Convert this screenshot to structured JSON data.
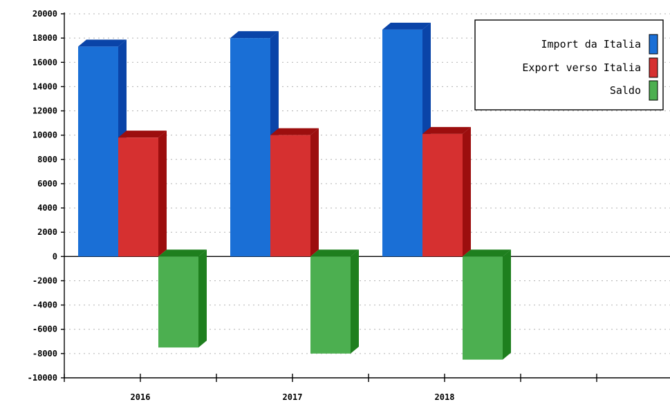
{
  "chart_data": {
    "type": "bar",
    "categories": [
      "2016",
      "2017",
      "2018"
    ],
    "series": [
      {
        "name": "Import da Italia",
        "color": "#1a6fd6",
        "side_color": "#0a44a8",
        "values": [
          17300,
          18000,
          18700
        ]
      },
      {
        "name": "Export verso Italia",
        "color": "#d63030",
        "side_color": "#9c0e0e",
        "values": [
          9800,
          10000,
          10100
        ]
      },
      {
        "name": "Saldo",
        "color": "#4caf50",
        "side_color": "#1e7f1e",
        "values": [
          -7500,
          -8000,
          -8500
        ]
      }
    ],
    "ylim": [
      -10000,
      20000
    ],
    "yticks": [
      "20000",
      "18000",
      "16000",
      "14000",
      "12000",
      "10000",
      "8000",
      "6000",
      "4000",
      "2000",
      "0",
      "-2000",
      "-4000",
      "-6000",
      "-8000",
      "-10000"
    ],
    "ytick_values": [
      20000,
      18000,
      16000,
      14000,
      12000,
      10000,
      8000,
      6000,
      4000,
      2000,
      0,
      -2000,
      -4000,
      -6000,
      -8000,
      -10000
    ],
    "grid": true,
    "legend_position": "top-right",
    "title": "",
    "xlabel": "",
    "ylabel": ""
  }
}
